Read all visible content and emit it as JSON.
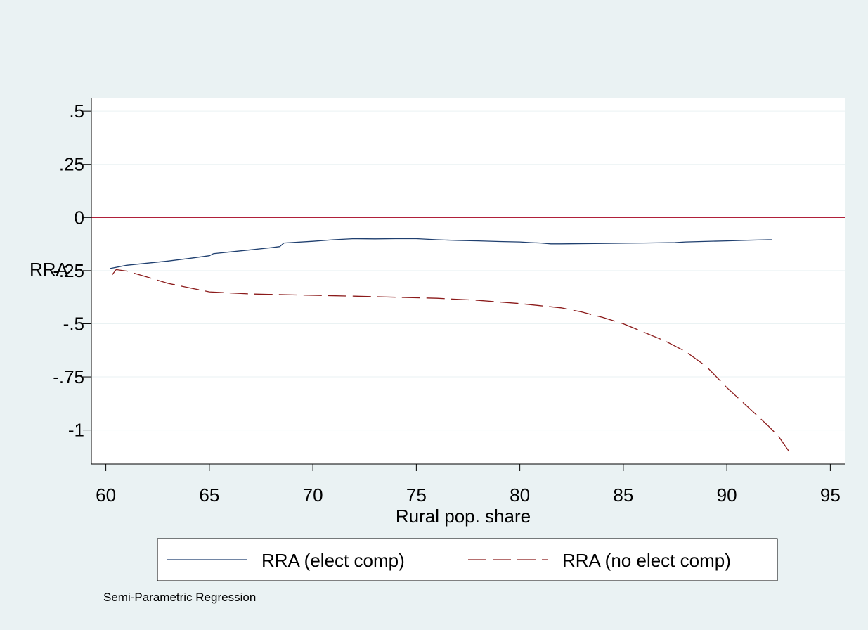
{
  "chart_data": {
    "type": "line",
    "title": "",
    "xlabel": "Rural pop. share",
    "ylabel": "RRA",
    "note": "Semi-Parametric Regression",
    "xlim": [
      59.3,
      95.7
    ],
    "ylim": [
      -1.16,
      0.56
    ],
    "x_ticks": [
      60,
      65,
      70,
      75,
      80,
      85,
      90,
      95
    ],
    "x_tick_labels": [
      "60",
      "65",
      "70",
      "75",
      "80",
      "85",
      "90",
      "95"
    ],
    "y_ticks": [
      0.5,
      0.25,
      0,
      -0.25,
      -0.5,
      -0.75,
      -1
    ],
    "y_tick_labels": [
      ".5",
      ".25",
      "0",
      "-.25",
      "-.5",
      "-.75",
      "-1"
    ],
    "grid": true,
    "legend_position": "bottom",
    "reference_line": {
      "y": 0,
      "color": "#b0203a"
    },
    "series": [
      {
        "name": "RRA (elect comp)",
        "color": "#1f3f6f",
        "style": "solid",
        "x": [
          60.2,
          61.0,
          62.0,
          63.0,
          64.0,
          65.0,
          65.2,
          66.0,
          67.0,
          68.0,
          68.4,
          68.6,
          70.0,
          71.0,
          72.0,
          73.0,
          74.0,
          75.0,
          76.0,
          77.0,
          78.0,
          79.0,
          80.0,
          80.5,
          81.0,
          81.5,
          82.0,
          84.0,
          86.0,
          87.5,
          88.0,
          90.0,
          91.0,
          92.0,
          92.2
        ],
        "y": [
          -0.24,
          -0.225,
          -0.215,
          -0.205,
          -0.193,
          -0.18,
          -0.17,
          -0.162,
          -0.152,
          -0.142,
          -0.137,
          -0.12,
          -0.112,
          -0.105,
          -0.1,
          -0.101,
          -0.1,
          -0.1,
          -0.105,
          -0.108,
          -0.11,
          -0.113,
          -0.115,
          -0.118,
          -0.12,
          -0.124,
          -0.124,
          -0.122,
          -0.12,
          -0.118,
          -0.115,
          -0.11,
          -0.107,
          -0.105,
          -0.105
        ]
      },
      {
        "name": "RRA (no elect comp)",
        "color": "#8b1a1a",
        "style": "dashed",
        "x": [
          60.3,
          60.5,
          61.0,
          62.0,
          63.0,
          64.0,
          65.0,
          66.0,
          67.0,
          68.0,
          70.0,
          72.0,
          74.0,
          76.0,
          78.0,
          80.0,
          81.0,
          82.0,
          83.0,
          84.0,
          85.0,
          86.0,
          87.0,
          88.0,
          89.0,
          90.0,
          91.0,
          92.0,
          92.5,
          93.0
        ],
        "y": [
          -0.27,
          -0.245,
          -0.252,
          -0.28,
          -0.31,
          -0.33,
          -0.35,
          -0.355,
          -0.36,
          -0.362,
          -0.366,
          -0.37,
          -0.375,
          -0.38,
          -0.39,
          -0.405,
          -0.415,
          -0.425,
          -0.445,
          -0.47,
          -0.5,
          -0.54,
          -0.58,
          -0.63,
          -0.7,
          -0.8,
          -0.89,
          -0.98,
          -1.03,
          -1.1
        ]
      }
    ]
  }
}
